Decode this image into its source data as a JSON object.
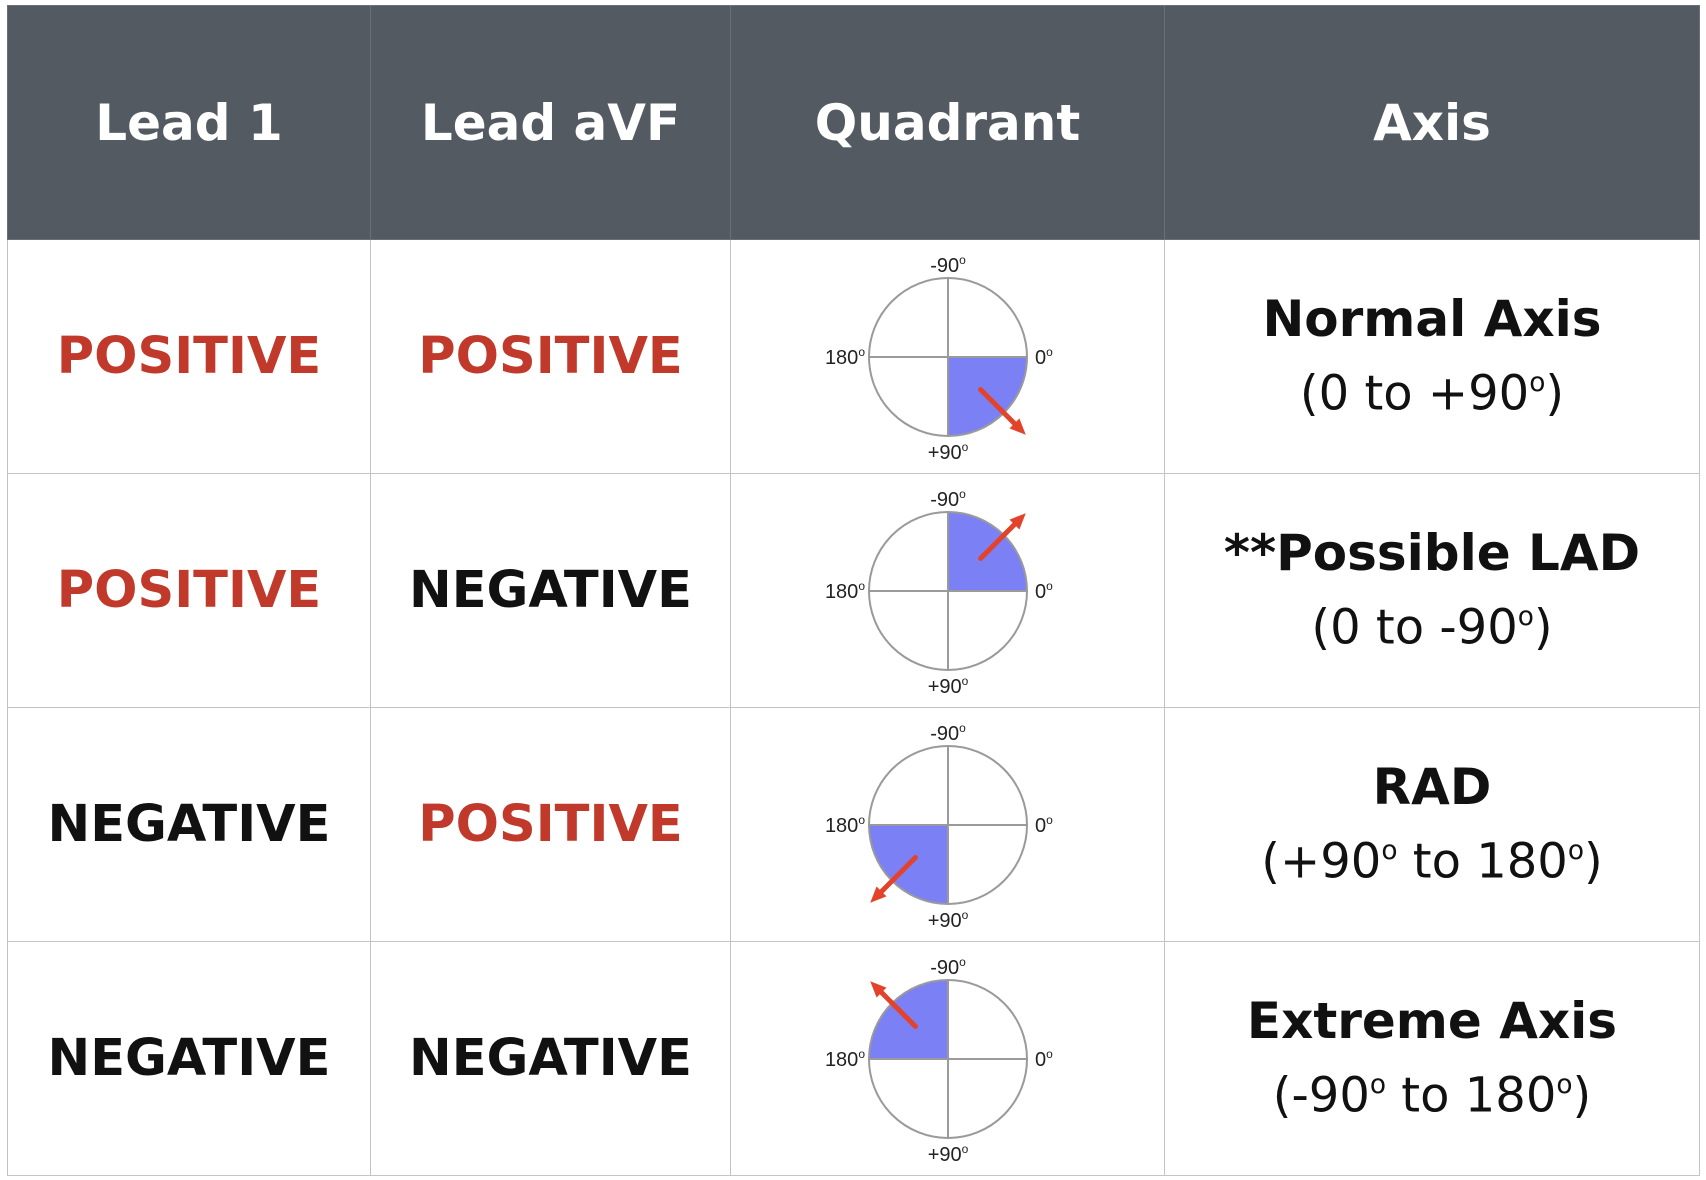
{
  "colors": {
    "header_bg": "#545a61",
    "positive": "#c0392b",
    "negative": "#111111",
    "quadrant_fill": "#7b80f5",
    "arrow": "#e2432a"
  },
  "headers": {
    "lead1": "Lead 1",
    "leadavf": "Lead aVF",
    "quadrant": "Quadrant",
    "axis": "Axis"
  },
  "rows": [
    {
      "lead1": "POSITIVE",
      "lead1_polarity": "positive",
      "leadavf": "POSITIVE",
      "leadavf_polarity": "positive",
      "quadrant": {
        "shaded": "bottom-right",
        "label_top": "-90°",
        "label_right": "0°",
        "label_bottom": "+90°",
        "label_left": "180°"
      },
      "axis_title": "Normal Axis",
      "axis_range": "(0 to +90°)"
    },
    {
      "lead1": "POSITIVE",
      "lead1_polarity": "positive",
      "leadavf": "NEGATIVE",
      "leadavf_polarity": "negative",
      "quadrant": {
        "shaded": "top-right",
        "label_top": "-90°",
        "label_right": "0°",
        "label_bottom": "+90°",
        "label_left": "180°"
      },
      "axis_title": "**Possible LAD",
      "axis_range": "(0 to -90°)"
    },
    {
      "lead1": "NEGATIVE",
      "lead1_polarity": "negative",
      "leadavf": "POSITIVE",
      "leadavf_polarity": "positive",
      "quadrant": {
        "shaded": "bottom-left",
        "label_top": "-90°",
        "label_right": "0°",
        "label_bottom": "+90°",
        "label_left": "180°"
      },
      "axis_title": "RAD",
      "axis_range": "(+90° to 180°)"
    },
    {
      "lead1": "NEGATIVE",
      "lead1_polarity": "negative",
      "leadavf": "NEGATIVE",
      "leadavf_polarity": "negative",
      "quadrant": {
        "shaded": "top-left",
        "label_top": "-90°",
        "label_right": "0°",
        "label_bottom": "+90°",
        "label_left": "180°"
      },
      "axis_title": "Extreme Axis",
      "axis_range": "(-90° to 180°)"
    }
  ]
}
